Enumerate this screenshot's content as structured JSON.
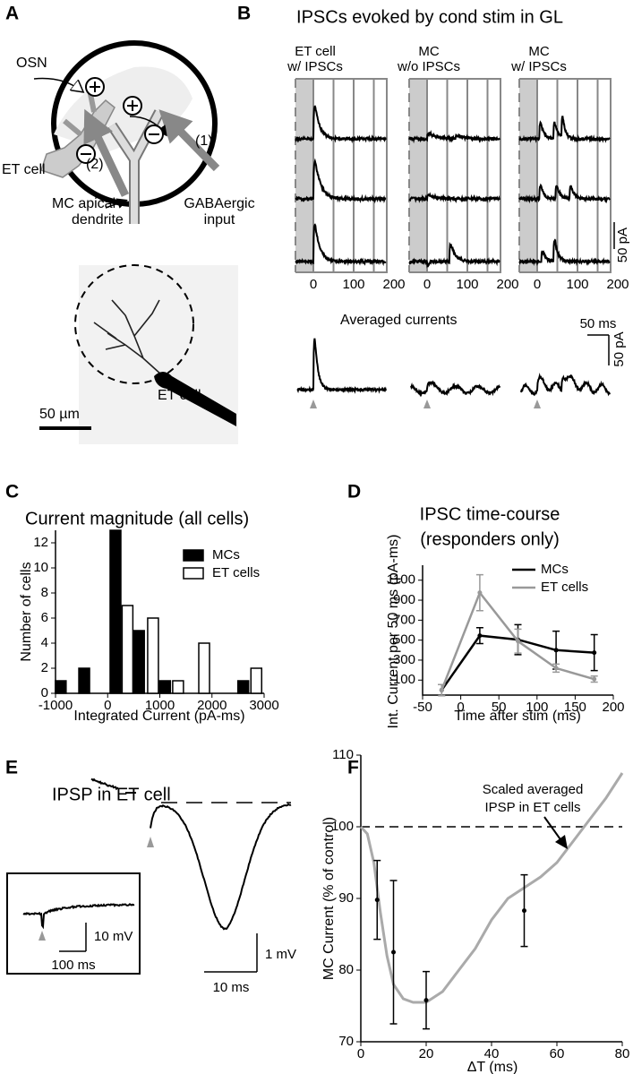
{
  "panel_labels": [
    "A",
    "B",
    "C",
    "D",
    "E",
    "F"
  ],
  "panel_a": {
    "osn": "OSN",
    "et_cell": "ET cell",
    "input_2": "(2)",
    "input_1": "(1)",
    "mc_dendrite": [
      "MC apical",
      "dendrite"
    ],
    "gaba_input": [
      "GABAergic",
      "input"
    ],
    "image_label": "ET cell",
    "scale_label": "50 µm"
  },
  "panel_b": {
    "title": "IPSCs evoked by cond stim in GL",
    "columns": [
      {
        "title": [
          "ET cell",
          "w/ IPSCs"
        ],
        "ticks": [
          "0",
          "100",
          "200"
        ]
      },
      {
        "title": [
          "MC",
          "w/o IPSCs"
        ],
        "ticks": [
          "0",
          "100",
          "200"
        ]
      },
      {
        "title": [
          "MC",
          "w/ IPSCs"
        ],
        "ticks": [
          "0",
          "100",
          "200"
        ]
      }
    ],
    "scale_current": "50 pA",
    "averaged_label": "Averaged currents",
    "avg_scale_time": "50 ms",
    "avg_scale_current": "50 pA"
  },
  "panel_e": {
    "title": "IPSP in ET cell",
    "inset_scale_voltage": "10 mV",
    "inset_scale_time": "100 ms",
    "scale_voltage": "1 mV",
    "scale_time": "10 ms"
  },
  "chart_data": [
    {
      "type": "bar",
      "title": "Current magnitude (all cells)",
      "xlabel": "Integrated Current (pA-ms)",
      "ylabel": "Number of cells",
      "series": [
        {
          "name": "MCs",
          "color": "#000000",
          "x": [
            -900,
            -450,
            150,
            600,
            1100,
            2600
          ],
          "values": [
            1,
            2,
            13,
            5,
            1,
            1
          ]
        },
        {
          "name": "ET cells",
          "color": "#ffffff",
          "x": [
            380,
            870,
            1350,
            1850,
            2850
          ],
          "values": [
            7,
            6,
            1,
            4,
            2
          ]
        }
      ],
      "xlim": [
        -1000,
        3000
      ],
      "xticks": [
        -1000,
        0,
        1000,
        2000,
        3000
      ],
      "ylim": [
        0,
        13
      ],
      "yticks": [
        0,
        2,
        4,
        6,
        8,
        10,
        12
      ],
      "legend": "upper right"
    },
    {
      "type": "line",
      "title": "IPSC time-course",
      "subtitle": "(responders only)",
      "xlabel": "Time after stim (ms)",
      "ylabel": "Int. Current per 50 ms (pA-ms)",
      "x": [
        -25,
        25,
        75,
        125,
        175
      ],
      "series": [
        {
          "name": "MCs",
          "color": "#000000",
          "values": [
            0,
            545,
            505,
            400,
            375
          ],
          "errors": [
            55,
            80,
            150,
            190,
            180
          ]
        },
        {
          "name": "ET cells",
          "color": "#999999",
          "values": [
            0,
            975,
            490,
            220,
            110
          ],
          "errors": [
            55,
            180,
            120,
            40,
            30
          ]
        }
      ],
      "xlim": [
        -50,
        200
      ],
      "xticks": [
        -50,
        0,
        50,
        100,
        150,
        200
      ],
      "ylim": [
        -50,
        1250
      ],
      "yticks": [
        100,
        300,
        500,
        700,
        900,
        1100
      ],
      "legend": "upper right"
    },
    {
      "type": "line",
      "xlabel": "ΔT (ms)",
      "ylabel": "MC Current (% of control)",
      "annotation": [
        "Scaled averaged",
        "IPSP in ET cells"
      ],
      "reference_line": 100,
      "series": [
        {
          "color": "#aaaaaa",
          "x": [
            0,
            2,
            4,
            6,
            8,
            10,
            13,
            16,
            20,
            25,
            30,
            35,
            40,
            45,
            50,
            55,
            60,
            65,
            70,
            75,
            80
          ],
          "values": [
            100,
            99,
            95,
            88,
            82,
            78,
            76,
            75.5,
            75.5,
            77,
            80,
            83,
            87,
            90,
            91.5,
            93,
            95,
            98,
            101,
            104,
            107.5
          ]
        },
        {
          "color": "#000000",
          "x": [
            5,
            10,
            20,
            50
          ],
          "values": [
            89.8,
            82.5,
            75.8,
            88.3
          ],
          "errors": [
            5.5,
            10,
            4,
            5
          ]
        }
      ],
      "xlim": [
        0,
        80
      ],
      "xticks": [
        0,
        20,
        40,
        60,
        80
      ],
      "ylim": [
        70,
        110
      ],
      "yticks": [
        70,
        80,
        90,
        100,
        110
      ]
    }
  ]
}
